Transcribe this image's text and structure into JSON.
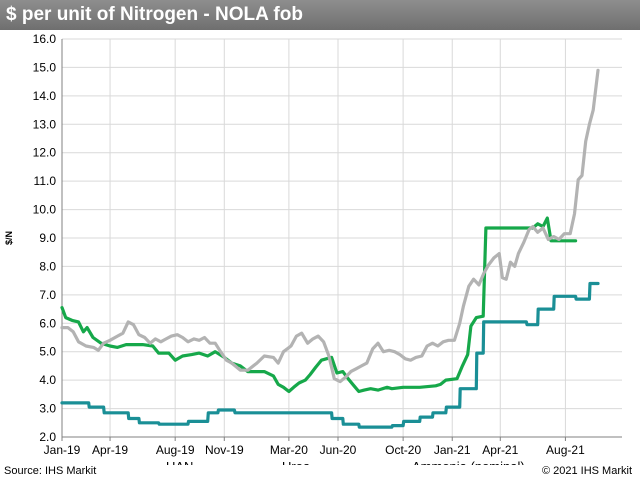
{
  "header": {
    "title": "$ per unit of Nitrogen - NOLA fob"
  },
  "footer": {
    "source": "Source: IHS Markit",
    "copyright": "© 2021 IHS Markit"
  },
  "colors": {
    "UAN": "#16a84a",
    "Urea": "#b3b3b3",
    "Ammonia (nominal)": "#1a8f96",
    "grid": "#d9d9d9"
  },
  "chart_data": {
    "type": "line",
    "title": "$ per unit of Nitrogen - NOLA fob",
    "xlabel": "",
    "ylabel": "$/N",
    "ylim": [
      2.0,
      16.0
    ],
    "yticks": [
      "2.0",
      "3.0",
      "4.0",
      "5.0",
      "6.0",
      "7.0",
      "8.0",
      "9.0",
      "10.0",
      "11.0",
      "12.0",
      "13.0",
      "14.0",
      "15.0",
      "16.0"
    ],
    "xlim": [
      "2019-01-01",
      "2021-11-15"
    ],
    "xticks": [
      {
        "label": "Jan-19",
        "date": "2019-01-01"
      },
      {
        "label": "Apr-19",
        "date": "2019-04-01"
      },
      {
        "label": "Aug-19",
        "date": "2019-08-01"
      },
      {
        "label": "Nov-19",
        "date": "2019-11-01"
      },
      {
        "label": "Mar-20",
        "date": "2020-03-01"
      },
      {
        "label": "Jun-20",
        "date": "2020-06-01"
      },
      {
        "label": "Oct-20",
        "date": "2020-10-01"
      },
      {
        "label": "Jan-21",
        "date": "2021-01-01"
      },
      {
        "label": "Apr-21",
        "date": "2021-04-01"
      },
      {
        "label": "Aug-21",
        "date": "2021-08-01"
      }
    ],
    "grid": true,
    "legend_position": "bottom",
    "series": [
      {
        "name": "UAN",
        "points": [
          [
            "2019-01-01",
            6.55
          ],
          [
            "2019-01-08",
            6.2
          ],
          [
            "2019-01-20",
            6.1
          ],
          [
            "2019-02-01",
            6.05
          ],
          [
            "2019-02-10",
            5.7
          ],
          [
            "2019-02-17",
            5.85
          ],
          [
            "2019-02-28",
            5.5
          ],
          [
            "2019-03-15",
            5.3
          ],
          [
            "2019-04-01",
            5.2
          ],
          [
            "2019-04-15",
            5.15
          ],
          [
            "2019-05-01",
            5.25
          ],
          [
            "2019-06-01",
            5.25
          ],
          [
            "2019-06-20",
            5.2
          ],
          [
            "2019-07-01",
            4.95
          ],
          [
            "2019-07-20",
            4.95
          ],
          [
            "2019-08-01",
            4.7
          ],
          [
            "2019-08-15",
            4.85
          ],
          [
            "2019-09-01",
            4.9
          ],
          [
            "2019-09-15",
            4.95
          ],
          [
            "2019-10-01",
            4.85
          ],
          [
            "2019-10-15",
            5.0
          ],
          [
            "2019-11-01",
            4.8
          ],
          [
            "2019-11-15",
            4.6
          ],
          [
            "2019-12-01",
            4.5
          ],
          [
            "2019-12-15",
            4.3
          ],
          [
            "2020-01-15",
            4.3
          ],
          [
            "2020-02-01",
            4.15
          ],
          [
            "2020-02-10",
            3.85
          ],
          [
            "2020-02-20",
            3.75
          ],
          [
            "2020-03-01",
            3.6
          ],
          [
            "2020-03-10",
            3.75
          ],
          [
            "2020-03-20",
            3.9
          ],
          [
            "2020-04-01",
            4.0
          ],
          [
            "2020-04-10",
            4.2
          ],
          [
            "2020-04-20",
            4.45
          ],
          [
            "2020-05-01",
            4.7
          ],
          [
            "2020-05-10",
            4.75
          ],
          [
            "2020-05-20",
            4.8
          ],
          [
            "2020-05-30",
            4.25
          ],
          [
            "2020-06-10",
            4.3
          ],
          [
            "2020-06-20",
            4.05
          ],
          [
            "2020-07-01",
            3.8
          ],
          [
            "2020-07-10",
            3.6
          ],
          [
            "2020-07-20",
            3.65
          ],
          [
            "2020-08-01",
            3.7
          ],
          [
            "2020-08-15",
            3.65
          ],
          [
            "2020-09-01",
            3.75
          ],
          [
            "2020-09-10",
            3.7
          ],
          [
            "2020-10-01",
            3.75
          ],
          [
            "2020-11-01",
            3.75
          ],
          [
            "2020-12-01",
            3.8
          ],
          [
            "2020-12-10",
            3.85
          ],
          [
            "2020-12-20",
            4.0
          ],
          [
            "2021-01-10",
            4.05
          ],
          [
            "2021-01-20",
            4.5
          ],
          [
            "2021-01-30",
            4.9
          ],
          [
            "2021-02-05",
            5.9
          ],
          [
            "2021-02-15",
            6.2
          ],
          [
            "2021-02-28",
            6.25
          ],
          [
            "2021-03-05",
            9.35
          ],
          [
            "2021-03-20",
            9.35
          ],
          [
            "2021-04-01",
            9.35
          ],
          [
            "2021-05-01",
            9.35
          ],
          [
            "2021-06-01",
            9.35
          ],
          [
            "2021-06-10",
            9.5
          ],
          [
            "2021-06-20",
            9.4
          ],
          [
            "2021-06-28",
            9.7
          ],
          [
            "2021-07-05",
            8.9
          ],
          [
            "2021-08-01",
            8.9
          ],
          [
            "2021-08-20",
            8.9
          ]
        ]
      },
      {
        "name": "Urea",
        "points": [
          [
            "2019-01-01",
            5.85
          ],
          [
            "2019-01-12",
            5.85
          ],
          [
            "2019-01-22",
            5.7
          ],
          [
            "2019-02-01",
            5.35
          ],
          [
            "2019-02-15",
            5.2
          ],
          [
            "2019-03-01",
            5.15
          ],
          [
            "2019-03-10",
            5.05
          ],
          [
            "2019-03-20",
            5.3
          ],
          [
            "2019-04-01",
            5.4
          ],
          [
            "2019-04-15",
            5.55
          ],
          [
            "2019-04-25",
            5.65
          ],
          [
            "2019-05-05",
            6.05
          ],
          [
            "2019-05-15",
            5.95
          ],
          [
            "2019-05-25",
            5.6
          ],
          [
            "2019-06-05",
            5.5
          ],
          [
            "2019-06-15",
            5.3
          ],
          [
            "2019-06-25",
            5.45
          ],
          [
            "2019-07-05",
            5.35
          ],
          [
            "2019-07-15",
            5.45
          ],
          [
            "2019-07-25",
            5.55
          ],
          [
            "2019-08-05",
            5.6
          ],
          [
            "2019-08-15",
            5.5
          ],
          [
            "2019-08-25",
            5.35
          ],
          [
            "2019-09-05",
            5.45
          ],
          [
            "2019-09-15",
            5.4
          ],
          [
            "2019-09-25",
            5.5
          ],
          [
            "2019-10-05",
            5.3
          ],
          [
            "2019-10-15",
            5.3
          ],
          [
            "2019-10-25",
            5.0
          ],
          [
            "2019-11-05",
            4.7
          ],
          [
            "2019-11-15",
            4.6
          ],
          [
            "2019-12-01",
            4.35
          ],
          [
            "2019-12-15",
            4.35
          ],
          [
            "2020-01-01",
            4.6
          ],
          [
            "2020-01-15",
            4.85
          ],
          [
            "2020-02-01",
            4.8
          ],
          [
            "2020-02-10",
            4.6
          ],
          [
            "2020-02-20",
            5.0
          ],
          [
            "2020-03-05",
            5.2
          ],
          [
            "2020-03-15",
            5.55
          ],
          [
            "2020-03-25",
            5.65
          ],
          [
            "2020-04-05",
            5.3
          ],
          [
            "2020-04-15",
            5.45
          ],
          [
            "2020-04-25",
            5.55
          ],
          [
            "2020-05-05",
            5.35
          ],
          [
            "2020-05-15",
            4.85
          ],
          [
            "2020-05-25",
            4.05
          ],
          [
            "2020-06-05",
            3.95
          ],
          [
            "2020-06-15",
            4.1
          ],
          [
            "2020-06-25",
            4.3
          ],
          [
            "2020-07-05",
            4.4
          ],
          [
            "2020-07-15",
            4.5
          ],
          [
            "2020-07-25",
            4.6
          ],
          [
            "2020-08-05",
            5.1
          ],
          [
            "2020-08-15",
            5.3
          ],
          [
            "2020-08-25",
            5.0
          ],
          [
            "2020-09-05",
            5.05
          ],
          [
            "2020-09-15",
            5.0
          ],
          [
            "2020-09-25",
            4.9
          ],
          [
            "2020-10-05",
            4.75
          ],
          [
            "2020-10-15",
            4.7
          ],
          [
            "2020-10-25",
            4.8
          ],
          [
            "2020-11-05",
            4.85
          ],
          [
            "2020-11-15",
            5.2
          ],
          [
            "2020-11-25",
            5.3
          ],
          [
            "2020-12-05",
            5.2
          ],
          [
            "2020-12-15",
            5.35
          ],
          [
            "2020-12-25",
            5.4
          ],
          [
            "2021-01-05",
            5.4
          ],
          [
            "2021-01-15",
            6.0
          ],
          [
            "2021-01-22",
            6.6
          ],
          [
            "2021-02-01",
            7.3
          ],
          [
            "2021-02-10",
            7.55
          ],
          [
            "2021-02-20",
            7.35
          ],
          [
            "2021-03-01",
            7.75
          ],
          [
            "2021-03-10",
            8.05
          ],
          [
            "2021-03-20",
            8.3
          ],
          [
            "2021-03-30",
            8.45
          ],
          [
            "2021-04-05",
            7.6
          ],
          [
            "2021-04-12",
            7.55
          ],
          [
            "2021-04-20",
            8.15
          ],
          [
            "2021-04-28",
            8.0
          ],
          [
            "2021-05-05",
            8.45
          ],
          [
            "2021-05-15",
            8.85
          ],
          [
            "2021-05-25",
            9.3
          ],
          [
            "2021-06-01",
            9.4
          ],
          [
            "2021-06-10",
            9.2
          ],
          [
            "2021-06-20",
            9.35
          ],
          [
            "2021-06-30",
            8.95
          ],
          [
            "2021-07-10",
            9.05
          ],
          [
            "2021-07-20",
            8.95
          ],
          [
            "2021-07-30",
            9.15
          ],
          [
            "2021-08-10",
            9.15
          ],
          [
            "2021-08-18",
            9.85
          ],
          [
            "2021-08-25",
            11.05
          ],
          [
            "2021-09-01",
            11.2
          ],
          [
            "2021-09-08",
            12.4
          ],
          [
            "2021-09-15",
            13.0
          ],
          [
            "2021-09-22",
            13.5
          ],
          [
            "2021-10-01",
            14.9
          ]
        ]
      },
      {
        "name": "Ammonia (nominal)",
        "points": [
          [
            "2019-01-01",
            3.2
          ],
          [
            "2019-02-20",
            3.2
          ],
          [
            "2019-02-21",
            3.05
          ],
          [
            "2019-03-20",
            3.05
          ],
          [
            "2019-03-21",
            2.85
          ],
          [
            "2019-05-05",
            2.85
          ],
          [
            "2019-05-06",
            2.65
          ],
          [
            "2019-05-25",
            2.65
          ],
          [
            "2019-05-26",
            2.5
          ],
          [
            "2019-07-01",
            2.5
          ],
          [
            "2019-07-02",
            2.45
          ],
          [
            "2019-08-25",
            2.45
          ],
          [
            "2019-08-26",
            2.55
          ],
          [
            "2019-10-01",
            2.55
          ],
          [
            "2019-10-02",
            2.85
          ],
          [
            "2019-10-20",
            2.85
          ],
          [
            "2019-10-21",
            2.95
          ],
          [
            "2019-11-20",
            2.95
          ],
          [
            "2019-11-21",
            2.85
          ],
          [
            "2020-05-20",
            2.85
          ],
          [
            "2020-05-21",
            2.65
          ],
          [
            "2020-06-10",
            2.65
          ],
          [
            "2020-06-11",
            2.45
          ],
          [
            "2020-07-10",
            2.45
          ],
          [
            "2020-07-11",
            2.35
          ],
          [
            "2020-09-10",
            2.35
          ],
          [
            "2020-09-11",
            2.4
          ],
          [
            "2020-10-01",
            2.4
          ],
          [
            "2020-10-02",
            2.55
          ],
          [
            "2020-11-01",
            2.55
          ],
          [
            "2020-11-02",
            2.7
          ],
          [
            "2020-11-25",
            2.7
          ],
          [
            "2020-11-26",
            2.85
          ],
          [
            "2020-12-20",
            2.85
          ],
          [
            "2020-12-21",
            3.05
          ],
          [
            "2021-01-15",
            3.05
          ],
          [
            "2021-01-16",
            3.7
          ],
          [
            "2021-02-15",
            3.7
          ],
          [
            "2021-02-16",
            4.95
          ],
          [
            "2021-02-28",
            4.95
          ],
          [
            "2021-03-01",
            6.05
          ],
          [
            "2021-05-20",
            6.05
          ],
          [
            "2021-05-21",
            5.95
          ],
          [
            "2021-06-10",
            5.95
          ],
          [
            "2021-06-11",
            6.5
          ],
          [
            "2021-07-10",
            6.5
          ],
          [
            "2021-07-11",
            6.95
          ],
          [
            "2021-08-20",
            6.95
          ],
          [
            "2021-08-21",
            6.85
          ],
          [
            "2021-09-15",
            6.85
          ],
          [
            "2021-09-16",
            7.4
          ],
          [
            "2021-10-01",
            7.4
          ]
        ]
      }
    ]
  }
}
